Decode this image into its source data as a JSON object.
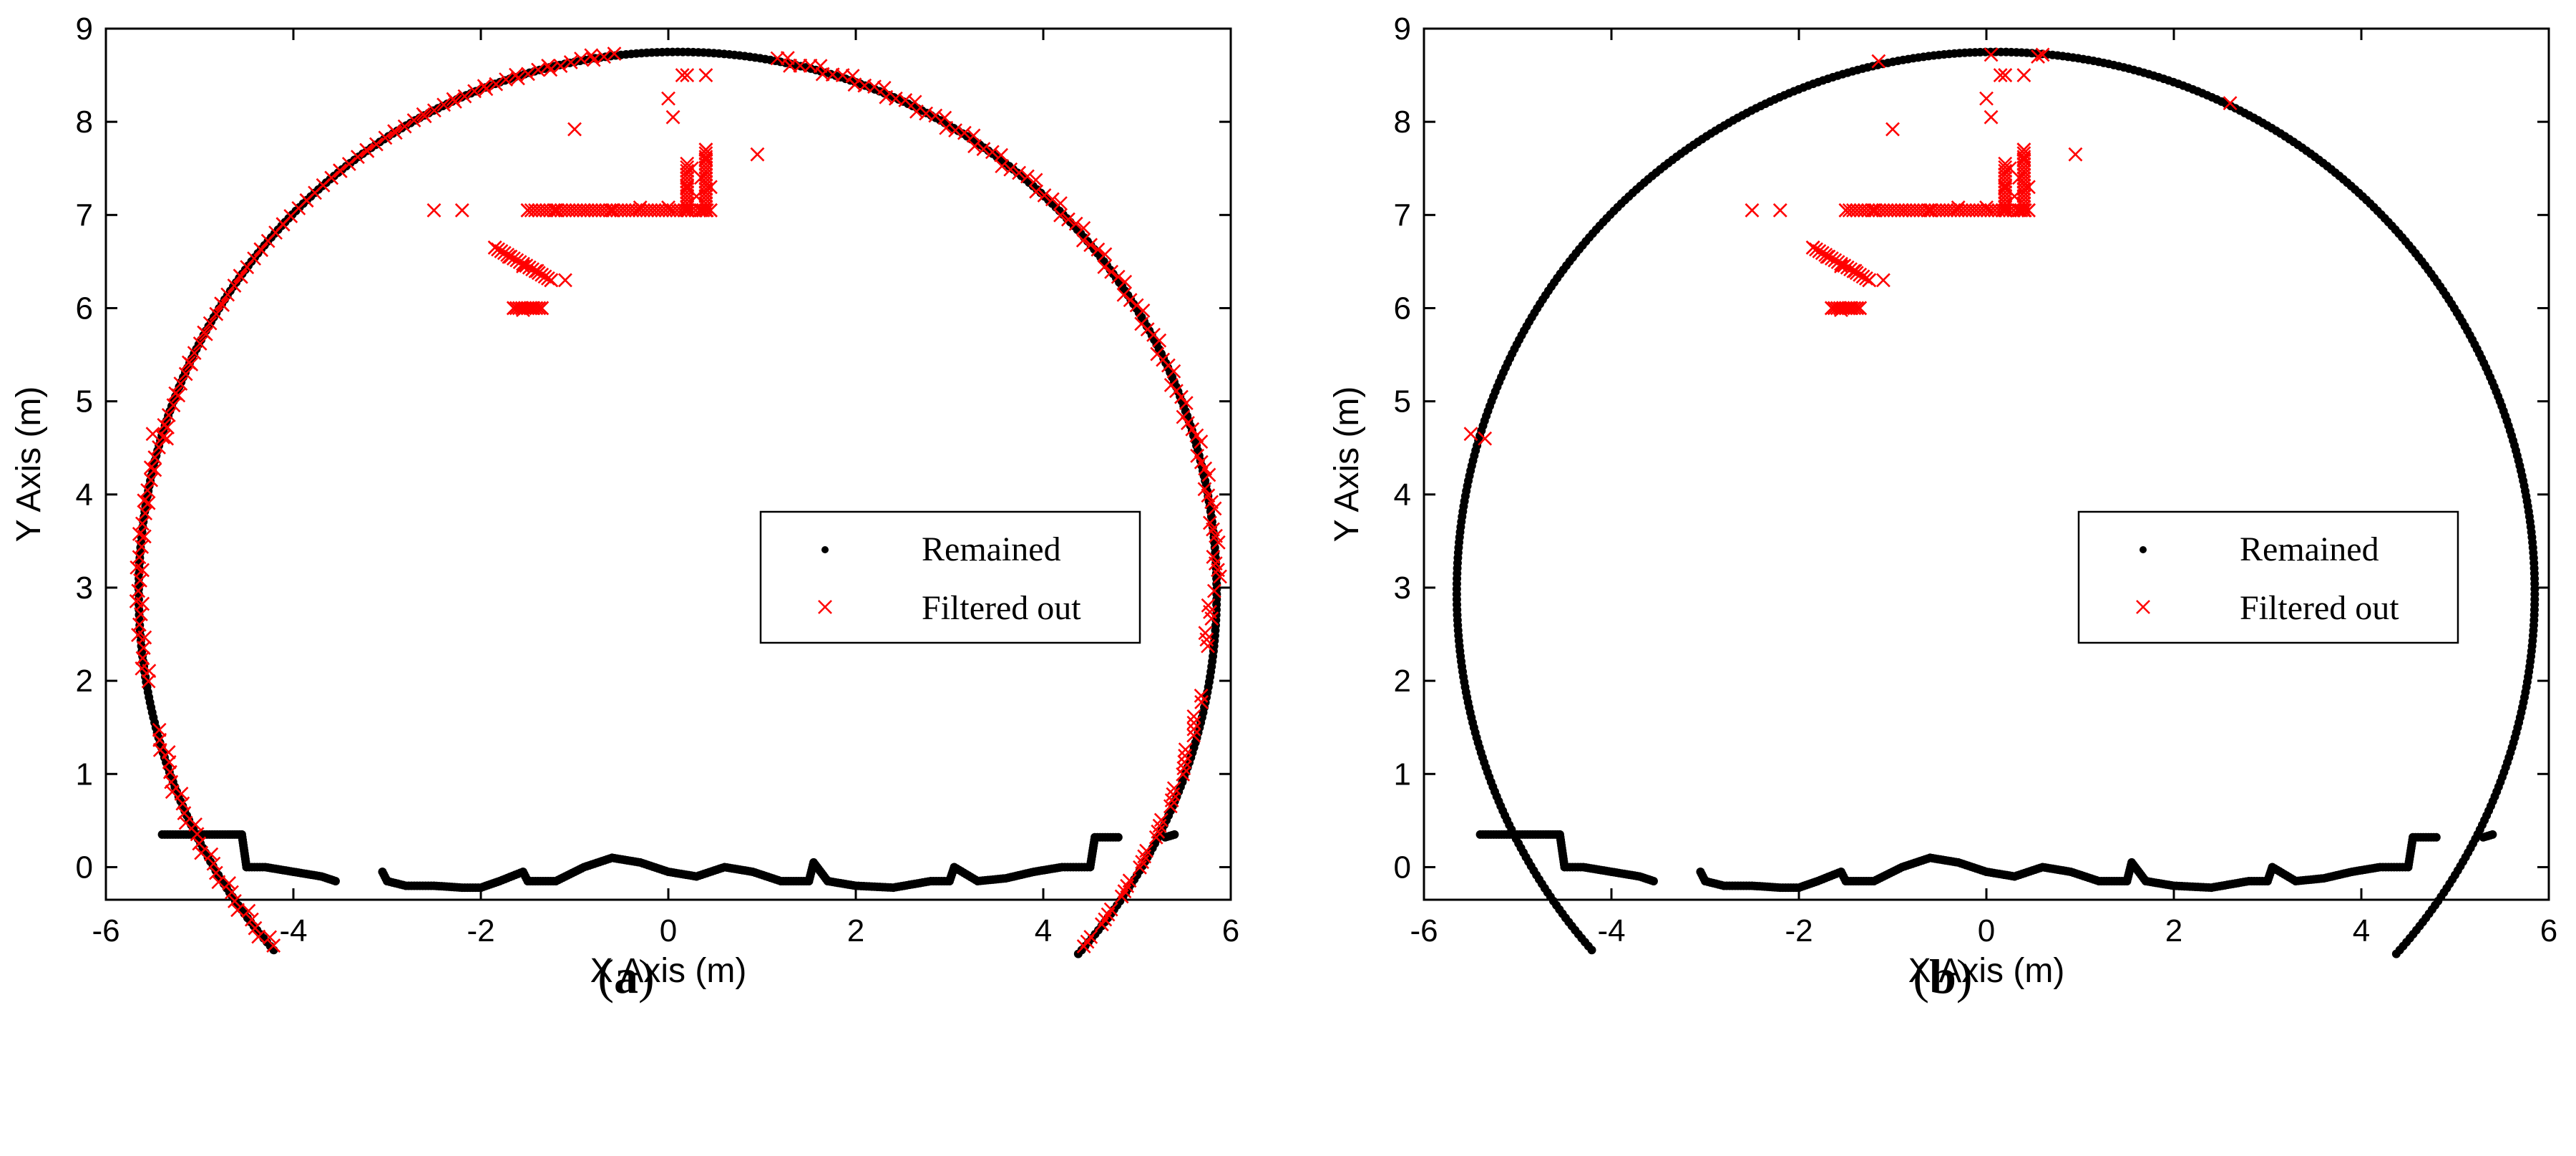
{
  "chart_data": [
    {
      "type": "scatter",
      "panel_label": "a",
      "xlabel": "X Axis (m)",
      "ylabel": "Y Axis (m)",
      "xlim": [
        -6,
        6
      ],
      "ylim": [
        -0.35,
        9
      ],
      "xticks": [
        -6,
        -4,
        -2,
        0,
        2,
        4,
        6
      ],
      "yticks": [
        0,
        1,
        2,
        3,
        4,
        5,
        6,
        7,
        8,
        9
      ],
      "legend": {
        "placement": "center-right",
        "entries": [
          "Remained",
          "Filtered out"
        ]
      },
      "series": [
        {
          "name": "Remained",
          "marker": "dot",
          "color": "#000000",
          "arc": {
            "cx": 0.1,
            "cy": 2.95,
            "rx": 5.75,
            "ry": 5.8,
            "theta_from_deg": -42,
            "theta_to_deg": 222
          },
          "floor": [
            [
              -5.4,
              0.35
            ],
            [
              -5.2,
              0.35
            ],
            [
              -4.95,
              0.35
            ],
            [
              -4.7,
              0.35
            ],
            [
              -4.55,
              0.35
            ],
            [
              -4.5,
              0.0
            ],
            [
              -4.3,
              0.0
            ],
            [
              -4.0,
              -0.05
            ],
            [
              -3.7,
              -0.1
            ],
            [
              -3.55,
              -0.15
            ],
            [
              -3.05,
              -0.05
            ],
            [
              -3.0,
              -0.15
            ],
            [
              -2.8,
              -0.2
            ],
            [
              -2.5,
              -0.2
            ],
            [
              -2.2,
              -0.22
            ],
            [
              -2.0,
              -0.22
            ],
            [
              -1.8,
              -0.15
            ],
            [
              -1.55,
              -0.05
            ],
            [
              -1.5,
              -0.15
            ],
            [
              -1.2,
              -0.15
            ],
            [
              -0.9,
              0.0
            ],
            [
              -0.6,
              0.1
            ],
            [
              -0.3,
              0.05
            ],
            [
              0.0,
              -0.05
            ],
            [
              0.3,
              -0.1
            ],
            [
              0.6,
              0.0
            ],
            [
              0.9,
              -0.05
            ],
            [
              1.2,
              -0.15
            ],
            [
              1.5,
              -0.15
            ],
            [
              1.55,
              0.05
            ],
            [
              1.7,
              -0.15
            ],
            [
              2.0,
              -0.2
            ],
            [
              2.4,
              -0.22
            ],
            [
              2.8,
              -0.15
            ],
            [
              3.0,
              -0.15
            ],
            [
              3.05,
              0.0
            ],
            [
              3.3,
              -0.15
            ],
            [
              3.6,
              -0.12
            ],
            [
              3.9,
              -0.05
            ],
            [
              4.2,
              0.0
            ],
            [
              4.5,
              0.0
            ],
            [
              4.55,
              0.32
            ],
            [
              4.8,
              0.32
            ],
            [
              5.3,
              0.32
            ],
            [
              5.4,
              0.35
            ]
          ]
        },
        {
          "name": "Filtered out",
          "marker": "x",
          "color": "#ff0000",
          "arc_ranges_deg": [
            [
              -40,
              -10
            ],
            [
              -5,
              80
            ],
            [
              97,
              190
            ],
            [
              195,
              222
            ]
          ],
          "points": [
            [
              -2.5,
              7.05
            ],
            [
              -2.2,
              7.05
            ],
            [
              -1.5,
              7.05
            ],
            [
              -1.2,
              7.05
            ],
            [
              -0.9,
              7.05
            ],
            [
              -0.6,
              7.05
            ],
            [
              -0.3,
              7.08
            ],
            [
              0.0,
              7.08
            ],
            [
              0.2,
              7.08
            ],
            [
              0.35,
              7.05
            ],
            [
              0.45,
              7.05
            ],
            [
              0.2,
              7.3
            ],
            [
              0.25,
              7.5
            ],
            [
              0.3,
              7.2
            ],
            [
              0.35,
              7.4
            ],
            [
              0.4,
              7.6
            ],
            [
              0.45,
              7.3
            ],
            [
              0.4,
              7.7
            ],
            [
              -1.85,
              6.65
            ],
            [
              -1.7,
              6.55
            ],
            [
              -1.55,
              6.45
            ],
            [
              -1.4,
              6.4
            ],
            [
              -1.25,
              6.3
            ],
            [
              -1.1,
              6.3
            ],
            [
              -1.65,
              6.0
            ],
            [
              -1.55,
              5.98
            ],
            [
              -1.45,
              6.0
            ],
            [
              -1.35,
              6.0
            ],
            [
              -1.0,
              7.92
            ],
            [
              0.0,
              8.25
            ],
            [
              0.05,
              8.05
            ],
            [
              0.15,
              8.5
            ],
            [
              0.2,
              8.5
            ],
            [
              0.4,
              8.5
            ],
            [
              0.95,
              7.65
            ],
            [
              -5.5,
              4.65
            ],
            [
              -5.35,
              4.6
            ]
          ]
        }
      ]
    },
    {
      "type": "scatter",
      "panel_label": "b",
      "xlabel": "X Axis (m)",
      "ylabel": "Y Axis (m)",
      "xlim": [
        -6,
        6
      ],
      "ylim": [
        -0.35,
        9
      ],
      "xticks": [
        -6,
        -4,
        -2,
        0,
        2,
        4,
        6
      ],
      "yticks": [
        0,
        1,
        2,
        3,
        4,
        5,
        6,
        7,
        8,
        9
      ],
      "legend": {
        "placement": "center-right",
        "entries": [
          "Remained",
          "Filtered out"
        ]
      },
      "series": [
        {
          "name": "Remained",
          "marker": "dot",
          "color": "#000000",
          "arc": {
            "cx": 0.1,
            "cy": 2.95,
            "rx": 5.75,
            "ry": 5.8,
            "theta_from_deg": -42,
            "theta_to_deg": 222
          },
          "floor": [
            [
              -5.4,
              0.35
            ],
            [
              -5.2,
              0.35
            ],
            [
              -4.95,
              0.35
            ],
            [
              -4.7,
              0.35
            ],
            [
              -4.55,
              0.35
            ],
            [
              -4.5,
              0.0
            ],
            [
              -4.3,
              0.0
            ],
            [
              -4.0,
              -0.05
            ],
            [
              -3.7,
              -0.1
            ],
            [
              -3.55,
              -0.15
            ],
            [
              -3.05,
              -0.05
            ],
            [
              -3.0,
              -0.15
            ],
            [
              -2.8,
              -0.2
            ],
            [
              -2.5,
              -0.2
            ],
            [
              -2.2,
              -0.22
            ],
            [
              -2.0,
              -0.22
            ],
            [
              -1.8,
              -0.15
            ],
            [
              -1.55,
              -0.05
            ],
            [
              -1.5,
              -0.15
            ],
            [
              -1.2,
              -0.15
            ],
            [
              -0.9,
              0.0
            ],
            [
              -0.6,
              0.1
            ],
            [
              -0.3,
              0.05
            ],
            [
              0.0,
              -0.05
            ],
            [
              0.3,
              -0.1
            ],
            [
              0.6,
              0.0
            ],
            [
              0.9,
              -0.05
            ],
            [
              1.2,
              -0.15
            ],
            [
              1.5,
              -0.15
            ],
            [
              1.55,
              0.05
            ],
            [
              1.7,
              -0.15
            ],
            [
              2.0,
              -0.2
            ],
            [
              2.4,
              -0.22
            ],
            [
              2.8,
              -0.15
            ],
            [
              3.0,
              -0.15
            ],
            [
              3.05,
              0.0
            ],
            [
              3.3,
              -0.15
            ],
            [
              3.6,
              -0.12
            ],
            [
              3.9,
              -0.05
            ],
            [
              4.2,
              0.0
            ],
            [
              4.5,
              0.0
            ],
            [
              4.55,
              0.32
            ],
            [
              4.8,
              0.32
            ],
            [
              5.3,
              0.32
            ],
            [
              5.4,
              0.35
            ]
          ]
        },
        {
          "name": "Filtered out",
          "marker": "x",
          "color": "#ff0000",
          "arc_ranges_deg": [],
          "points": [
            [
              -2.5,
              7.05
            ],
            [
              -2.2,
              7.05
            ],
            [
              -1.5,
              7.05
            ],
            [
              -1.2,
              7.05
            ],
            [
              -0.9,
              7.05
            ],
            [
              -0.6,
              7.05
            ],
            [
              -0.3,
              7.08
            ],
            [
              0.0,
              7.08
            ],
            [
              0.2,
              7.08
            ],
            [
              0.35,
              7.05
            ],
            [
              0.45,
              7.05
            ],
            [
              0.2,
              7.3
            ],
            [
              0.25,
              7.5
            ],
            [
              0.3,
              7.2
            ],
            [
              0.35,
              7.4
            ],
            [
              0.4,
              7.6
            ],
            [
              0.45,
              7.3
            ],
            [
              0.4,
              7.7
            ],
            [
              -1.85,
              6.65
            ],
            [
              -1.7,
              6.55
            ],
            [
              -1.55,
              6.45
            ],
            [
              -1.4,
              6.4
            ],
            [
              -1.25,
              6.3
            ],
            [
              -1.1,
              6.3
            ],
            [
              -1.65,
              6.0
            ],
            [
              -1.55,
              5.98
            ],
            [
              -1.45,
              6.0
            ],
            [
              -1.35,
              6.0
            ],
            [
              -1.0,
              7.92
            ],
            [
              0.0,
              8.25
            ],
            [
              0.05,
              8.05
            ],
            [
              0.15,
              8.5
            ],
            [
              0.2,
              8.5
            ],
            [
              0.4,
              8.5
            ],
            [
              0.95,
              7.65
            ],
            [
              -5.5,
              4.65
            ],
            [
              -5.35,
              4.6
            ],
            [
              -1.15,
              8.65
            ],
            [
              0.05,
              8.72
            ],
            [
              0.2,
              8.5
            ],
            [
              0.55,
              8.7
            ],
            [
              0.6,
              8.72
            ],
            [
              2.6,
              8.2
            ]
          ]
        }
      ]
    }
  ]
}
